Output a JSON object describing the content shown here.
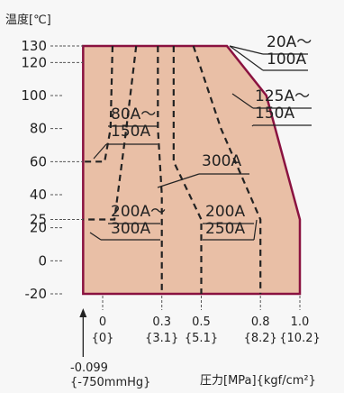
{
  "chart_data": {
    "type": "area",
    "ylabel": "温度[℃]",
    "xlabel": "圧力[MPa]{kgf/cm²}",
    "ylim": [
      -20,
      130
    ],
    "y_ticks": [
      "130",
      "120",
      "100",
      "80",
      "60",
      "40",
      "25",
      "20",
      "0",
      "-20"
    ],
    "x_ticks": [
      {
        "value": 0,
        "label": "0",
        "sub": "{0}"
      },
      {
        "value": 0.3,
        "label": "0.3",
        "sub": "{3.1}"
      },
      {
        "value": 0.5,
        "label": "0.5",
        "sub": "{5.1}"
      },
      {
        "value": 0.8,
        "label": "0.8",
        "sub": "{8.2}"
      },
      {
        "value": 1.0,
        "label": "1.0",
        "sub": "{10.2}"
      }
    ],
    "vacuum_marker": {
      "value": -0.099,
      "label": "-0.099",
      "sub": "{-750mmHg}"
    },
    "colors": {
      "fill": "#e9bfa6",
      "border": "#8a1240",
      "dash": "#222222"
    },
    "envelope": [
      {
        "x": -0.099,
        "y": -20
      },
      {
        "x": -0.099,
        "y": 130
      },
      {
        "x": 0.63,
        "y": 130
      },
      {
        "x": 0.83,
        "y": 100
      },
      {
        "x": 1.0,
        "y": 25
      },
      {
        "x": 1.0,
        "y": -20
      }
    ],
    "series": [
      {
        "name": "20A～100A",
        "points": []
      },
      {
        "name": "125A～150A",
        "points": [
          {
            "x": 0.46,
            "y": 130
          },
          {
            "x": 0.6,
            "y": 80
          },
          {
            "x": 0.8,
            "y": 25
          },
          {
            "x": 0.8,
            "y": -20
          }
        ]
      },
      {
        "name": "80A～150A",
        "points": [
          {
            "x": 0.05,
            "y": 130
          },
          {
            "x": 0.04,
            "y": 80
          },
          {
            "x": 0.01,
            "y": 60
          },
          {
            "x": -0.099,
            "y": 60
          }
        ]
      },
      {
        "name": "200A～300A",
        "points": [
          {
            "x": 0.17,
            "y": 130
          },
          {
            "x": 0.12,
            "y": 80
          },
          {
            "x": 0.06,
            "y": 25
          },
          {
            "x": -0.099,
            "y": 25
          }
        ]
      },
      {
        "name": "300A",
        "points": [
          {
            "x": 0.28,
            "y": 130
          },
          {
            "x": 0.28,
            "y": 80
          },
          {
            "x": 0.3,
            "y": 40
          },
          {
            "x": 0.3,
            "y": -20
          }
        ]
      },
      {
        "name": "200A～250A",
        "points": [
          {
            "x": 0.36,
            "y": 130
          },
          {
            "x": 0.36,
            "y": 60
          },
          {
            "x": 0.5,
            "y": 25
          },
          {
            "x": 0.5,
            "y": -20
          }
        ]
      }
    ],
    "annotations": [
      {
        "line1": "20A～",
        "line2": "100A"
      },
      {
        "line1": "125A～",
        "line2": "150A"
      },
      {
        "line1": "80A～",
        "line2": "150A"
      },
      {
        "line1": "300A",
        "line2": ""
      },
      {
        "line1": "200A～",
        "line2": "300A"
      },
      {
        "line1": "200A",
        "line2": "250A"
      }
    ]
  }
}
